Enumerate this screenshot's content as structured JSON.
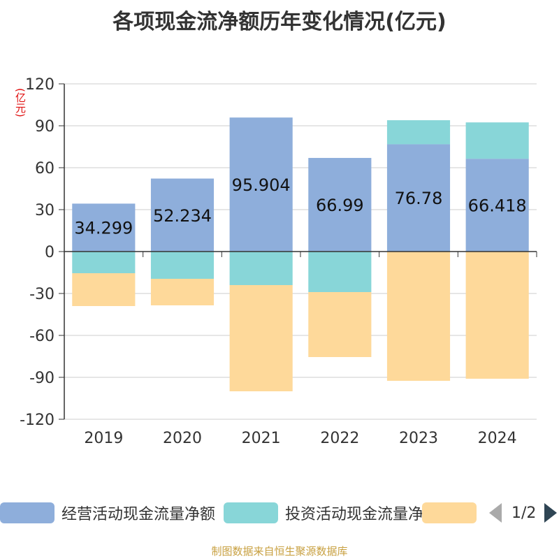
{
  "chart_data": {
    "type": "bar",
    "stacked": true,
    "title": "各项现金流净额历年变化情况(亿元)",
    "ylabel": "(亿元)",
    "categories": [
      "2019",
      "2020",
      "2021",
      "2022",
      "2023",
      "2024"
    ],
    "ylim": [
      -120,
      120
    ],
    "yticks": [
      120,
      90,
      60,
      30,
      0,
      -30,
      -60,
      -90,
      -120
    ],
    "grid": true,
    "series": [
      {
        "name": "经营活动现金流量净额",
        "color": "#8eaedb",
        "values": [
          34.299,
          52.234,
          95.904,
          66.99,
          76.78,
          66.418
        ],
        "labels": [
          "34.299",
          "52.234",
          "95.904",
          "66.99",
          "76.78",
          "66.418"
        ]
      },
      {
        "name": "投资活动现金流量净额",
        "color": "#88d6d8",
        "values": [
          -15.5,
          -19.5,
          -24,
          -29,
          17.2,
          26
        ]
      },
      {
        "name": "",
        "color": "#fed99a",
        "values": [
          -23.5,
          -19,
          -76,
          -46.5,
          -92.5,
          -91
        ]
      }
    ],
    "legend_position": "bottom"
  },
  "legend": {
    "page": "1/2"
  },
  "source": "制图数据来自恒生聚源数据库"
}
